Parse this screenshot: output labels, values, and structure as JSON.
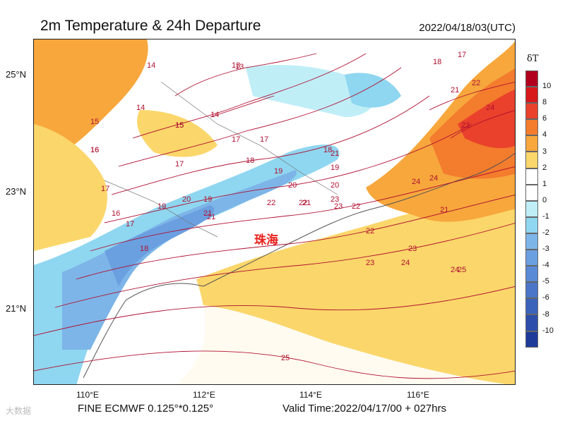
{
  "header": {
    "title": "2m Temperature & 24h Departure",
    "datetime": "2022/04/18/03(UTC)"
  },
  "map": {
    "lat_labels": [
      "25°N",
      "23°N",
      "21°N"
    ],
    "lon_labels": [
      "110°E",
      "112°E",
      "114°E",
      "116°E"
    ],
    "city_label": "珠海",
    "contour_labels": [
      "13",
      "14",
      "14",
      "15",
      "15",
      "16",
      "17",
      "17",
      "18",
      "19",
      "20",
      "21",
      "22",
      "23",
      "24",
      "16",
      "17",
      "18",
      "19",
      "20",
      "21",
      "22",
      "23",
      "24",
      "25",
      "14",
      "15",
      "16",
      "17",
      "17",
      "18",
      "19",
      "19",
      "20",
      "21",
      "21",
      "22",
      "22",
      "23",
      "23",
      "24",
      "24",
      "13",
      "17",
      "18",
      "21",
      "21",
      "22",
      "23",
      "24",
      "25"
    ]
  },
  "legend": {
    "title": "δT",
    "ticks": [
      "10",
      "8",
      "6",
      "4",
      "3",
      "2",
      "1",
      "0",
      "-1",
      "-2",
      "-3",
      "-4",
      "-5",
      "-6",
      "-8",
      "-10"
    ],
    "colors": [
      "#b2001f",
      "#d7191c",
      "#e9412b",
      "#f47c2d",
      "#f7a73c",
      "#fbd66a",
      "#ffffff",
      "#ffffff",
      "#bfeef7",
      "#8fd6f0",
      "#7db5e8",
      "#6a9fe0",
      "#5a8ad6",
      "#4a75c8",
      "#3b63bc",
      "#2d4eaa",
      "#1f3b99"
    ]
  },
  "footer": {
    "model": "FINE ECMWF 0.125°*0.125°",
    "valid_time": "Valid Time:2022/04/17/00 + 027hrs",
    "watermark": "大数据"
  }
}
